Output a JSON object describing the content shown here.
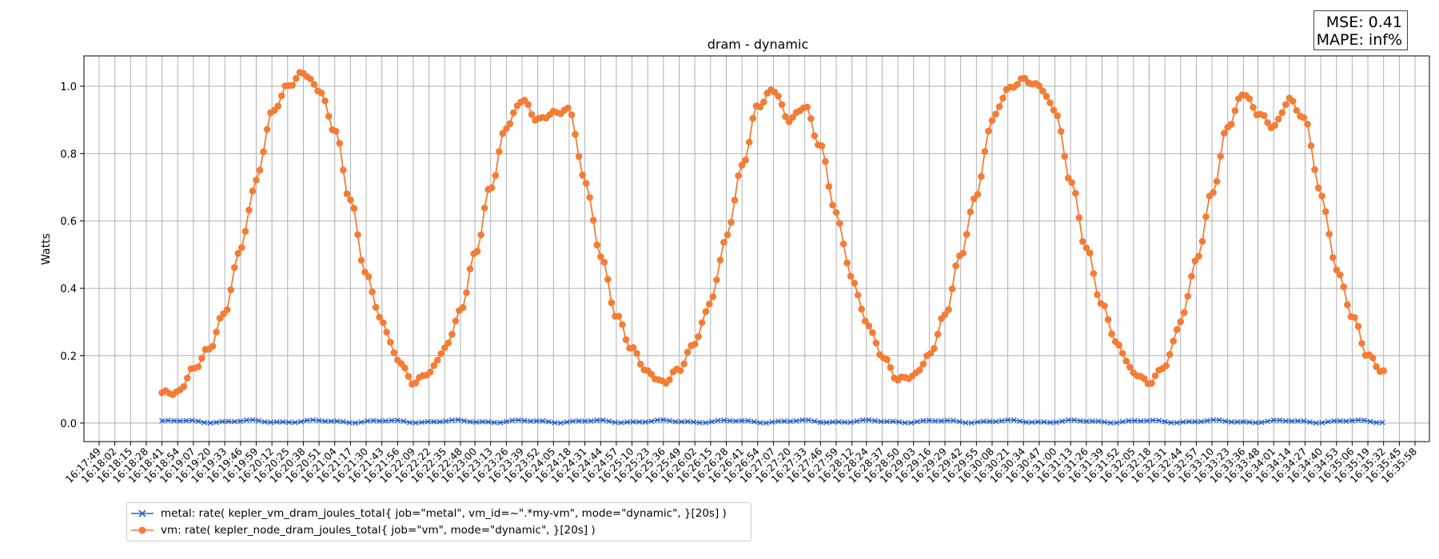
{
  "chart_data": {
    "type": "line",
    "title": "dram - dynamic",
    "xlabel": "",
    "ylabel": "Watts",
    "ylim": [
      -0.055,
      1.09
    ],
    "yticks": [
      0.0,
      0.2,
      0.4,
      0.6,
      0.8,
      1.0
    ],
    "ytick_labels": [
      "0.0",
      "0.2",
      "0.4",
      "0.6",
      "0.8",
      "1.0"
    ],
    "xtick_labels": [
      "16:17:49",
      "16:18:02",
      "16:18:15",
      "16:18:28",
      "16:18:41",
      "16:18:54",
      "16:19:07",
      "16:19:20",
      "16:19:33",
      "16:19:46",
      "16:19:59",
      "16:20:12",
      "16:20:25",
      "16:20:38",
      "16:20:51",
      "16:21:04",
      "16:21:17",
      "16:21:30",
      "16:21:43",
      "16:21:56",
      "16:22:09",
      "16:22:22",
      "16:22:35",
      "16:22:48",
      "16:23:00",
      "16:23:13",
      "16:23:26",
      "16:23:39",
      "16:23:52",
      "16:24:05",
      "16:24:18",
      "16:24:31",
      "16:24:44",
      "16:24:57",
      "16:25:10",
      "16:25:23",
      "16:25:36",
      "16:25:49",
      "16:26:02",
      "16:26:15",
      "16:26:28",
      "16:26:41",
      "16:26:54",
      "16:27:07",
      "16:27:20",
      "16:27:33",
      "16:27:46",
      "16:27:59",
      "16:28:12",
      "16:28:24",
      "16:28:37",
      "16:28:50",
      "16:29:03",
      "16:29:16",
      "16:29:29",
      "16:29:42",
      "16:29:55",
      "16:30:08",
      "16:30:21",
      "16:30:34",
      "16:30:47",
      "16:31:00",
      "16:31:13",
      "16:31:26",
      "16:31:39",
      "16:31:52",
      "16:32:05",
      "16:32:18",
      "16:32:31",
      "16:32:44",
      "16:32:57",
      "16:33:10",
      "16:33:23",
      "16:33:36",
      "16:33:48",
      "16:34:01",
      "16:34:14",
      "16:34:27",
      "16:34:40",
      "16:34:53",
      "16:35:06",
      "16:35:19",
      "16:35:32",
      "16:35:45",
      "16:35:58"
    ],
    "grid": true,
    "legend_position": "bottom-left, below axes",
    "series": [
      {
        "name": "metal: rate( kepler_vm_dram_joules_total{ job=\"metal\", vm_id=~\".*my-vm\", mode=\"dynamic\", }[20s] )",
        "color": "#2a62c8",
        "marker": "x",
        "start_time": "16:18:41",
        "end_time": "16:35:32",
        "baseline_value": 0.005,
        "variation": 0.006
      },
      {
        "name": "vm: rate( kepler_node_dram_joules_total{ job=\"vm\", mode=\"dynamic\", }[20s] )",
        "color": "#f57c35",
        "marker": "o",
        "keypoints": [
          [
            "16:18:41",
            0.09
          ],
          [
            "16:18:54",
            0.09
          ],
          [
            "16:19:07",
            0.16
          ],
          [
            "16:19:20",
            0.22
          ],
          [
            "16:19:33",
            0.33
          ],
          [
            "16:19:46",
            0.52
          ],
          [
            "16:19:59",
            0.72
          ],
          [
            "16:20:12",
            0.92
          ],
          [
            "16:20:25",
            1.0
          ],
          [
            "16:20:38",
            1.04
          ],
          [
            "16:20:51",
            0.99
          ],
          [
            "16:21:04",
            0.87
          ],
          [
            "16:21:17",
            0.66
          ],
          [
            "16:21:30",
            0.44
          ],
          [
            "16:21:43",
            0.3
          ],
          [
            "16:21:56",
            0.19
          ],
          [
            "16:22:09",
            0.12
          ],
          [
            "16:22:22",
            0.15
          ],
          [
            "16:22:35",
            0.22
          ],
          [
            "16:22:48",
            0.33
          ],
          [
            "16:23:00",
            0.5
          ],
          [
            "16:23:13",
            0.7
          ],
          [
            "16:23:26",
            0.88
          ],
          [
            "16:23:39",
            0.96
          ],
          [
            "16:23:52",
            0.9
          ],
          [
            "16:24:05",
            0.92
          ],
          [
            "16:24:18",
            0.93
          ],
          [
            "16:24:31",
            0.72
          ],
          [
            "16:24:44",
            0.5
          ],
          [
            "16:24:57",
            0.32
          ],
          [
            "16:25:10",
            0.22
          ],
          [
            "16:25:23",
            0.15
          ],
          [
            "16:25:36",
            0.12
          ],
          [
            "16:25:49",
            0.16
          ],
          [
            "16:26:02",
            0.24
          ],
          [
            "16:26:15",
            0.36
          ],
          [
            "16:26:28",
            0.55
          ],
          [
            "16:26:41",
            0.76
          ],
          [
            "16:26:54",
            0.94
          ],
          [
            "16:27:07",
            0.99
          ],
          [
            "16:27:20",
            0.9
          ],
          [
            "16:27:33",
            0.94
          ],
          [
            "16:27:46",
            0.82
          ],
          [
            "16:27:59",
            0.62
          ],
          [
            "16:28:12",
            0.43
          ],
          [
            "16:28:24",
            0.3
          ],
          [
            "16:28:37",
            0.2
          ],
          [
            "16:28:50",
            0.13
          ],
          [
            "16:29:03",
            0.14
          ],
          [
            "16:29:16",
            0.2
          ],
          [
            "16:29:29",
            0.32
          ],
          [
            "16:29:42",
            0.5
          ],
          [
            "16:29:55",
            0.68
          ],
          [
            "16:30:08",
            0.9
          ],
          [
            "16:30:21",
            0.99
          ],
          [
            "16:30:34",
            1.02
          ],
          [
            "16:30:47",
            1.0
          ],
          [
            "16:31:00",
            0.93
          ],
          [
            "16:31:13",
            0.72
          ],
          [
            "16:31:26",
            0.52
          ],
          [
            "16:31:39",
            0.35
          ],
          [
            "16:31:52",
            0.23
          ],
          [
            "16:32:05",
            0.15
          ],
          [
            "16:32:18",
            0.12
          ],
          [
            "16:32:31",
            0.17
          ],
          [
            "16:32:44",
            0.3
          ],
          [
            "16:32:57",
            0.48
          ],
          [
            "16:33:10",
            0.68
          ],
          [
            "16:33:23",
            0.88
          ],
          [
            "16:33:36",
            0.98
          ],
          [
            "16:33:48",
            0.92
          ],
          [
            "16:34:01",
            0.88
          ],
          [
            "16:34:14",
            0.96
          ],
          [
            "16:34:27",
            0.9
          ],
          [
            "16:34:40",
            0.68
          ],
          [
            "16:34:53",
            0.46
          ],
          [
            "16:35:06",
            0.32
          ],
          [
            "16:35:19",
            0.2
          ],
          [
            "16:35:32",
            0.15
          ]
        ]
      }
    ]
  },
  "stats": {
    "mse": "MSE: 0.41",
    "mape": "MAPE: inf%"
  },
  "legend": {
    "metal_label": "metal: rate( kepler_vm_dram_joules_total{ job=\"metal\", vm_id=~\".*my-vm\", mode=\"dynamic\", }[20s] )",
    "vm_label": "vm: rate( kepler_node_dram_joules_total{ job=\"vm\", mode=\"dynamic\", }[20s] )"
  }
}
